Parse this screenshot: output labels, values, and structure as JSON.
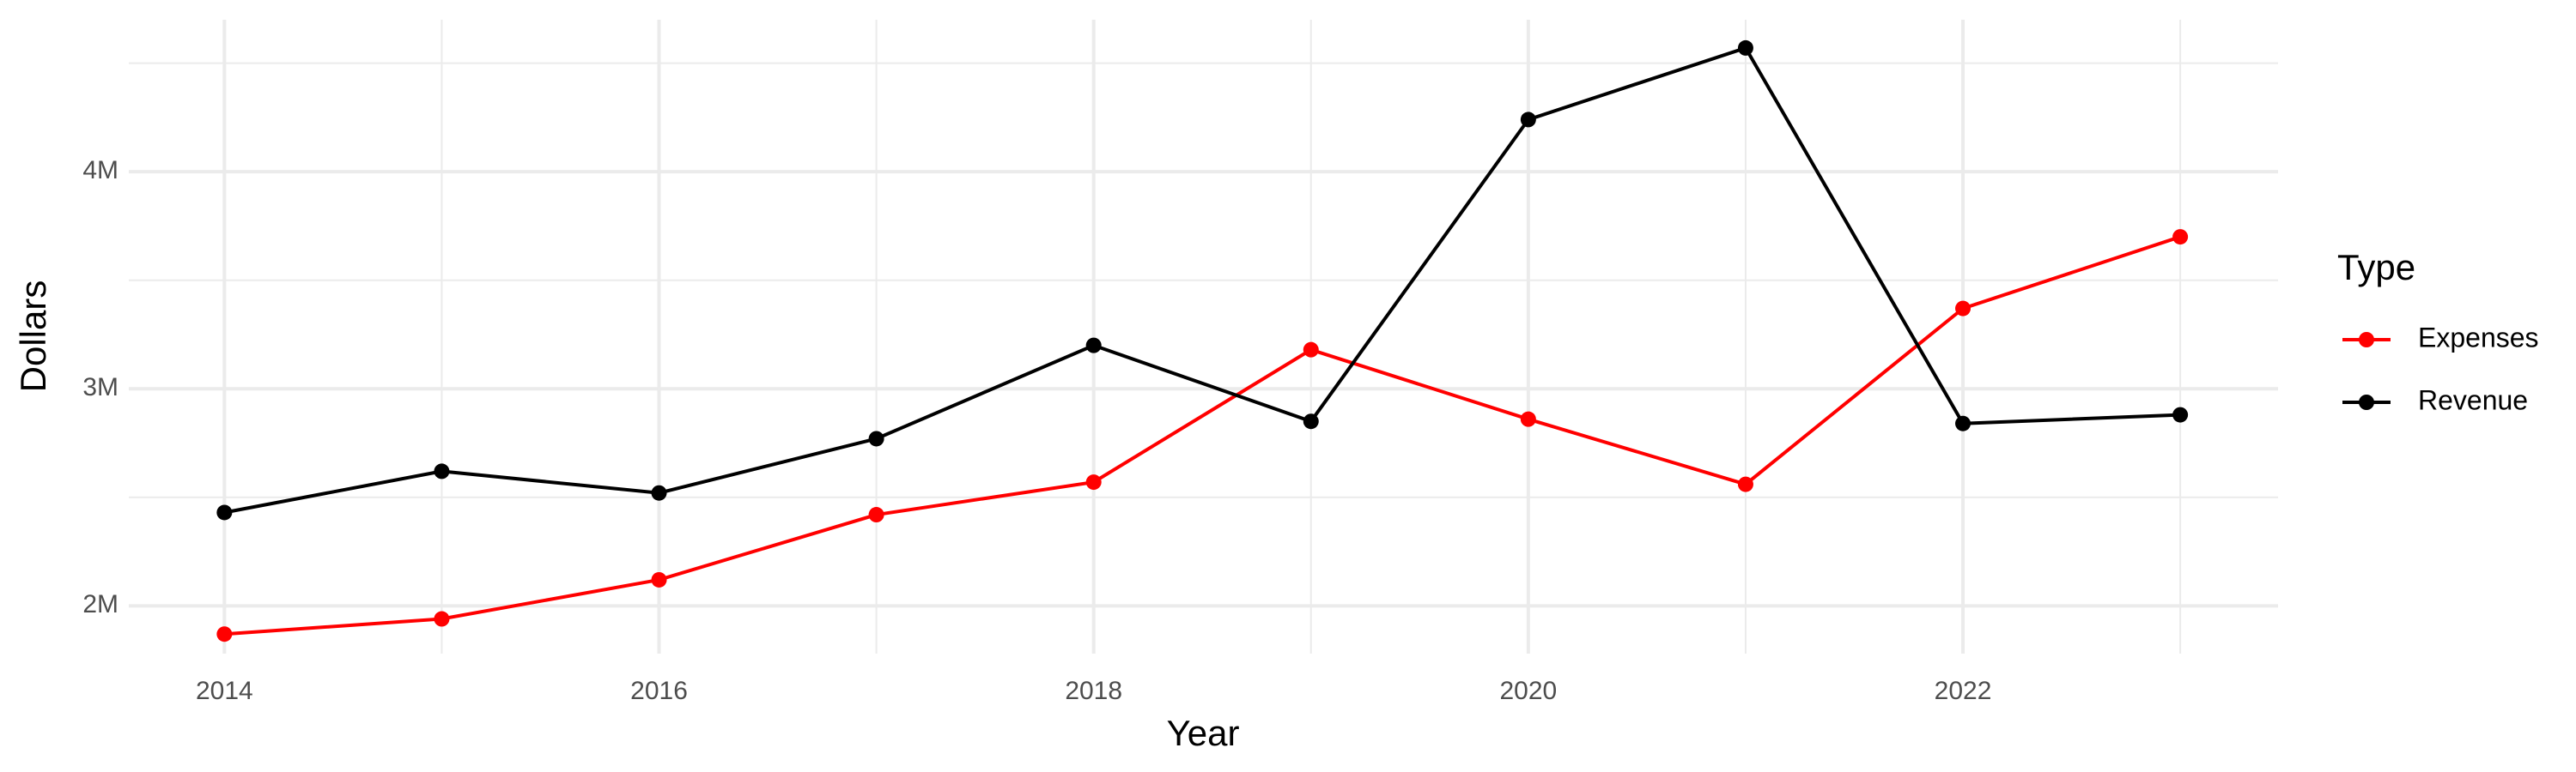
{
  "chart_data": {
    "type": "line",
    "x": [
      2014,
      2015,
      2016,
      2017,
      2018,
      2019,
      2020,
      2021,
      2022,
      2023
    ],
    "series": [
      {
        "name": "Expenses",
        "color": "#ff0000",
        "values": [
          1870000,
          1940000,
          2120000,
          2420000,
          2570000,
          3180000,
          2860000,
          2560000,
          3370000,
          3700000
        ]
      },
      {
        "name": "Revenue",
        "color": "#000000",
        "values": [
          2430000,
          2620000,
          2520000,
          2770000,
          3200000,
          2850000,
          4240000,
          4570000,
          2840000,
          2880000
        ]
      }
    ],
    "x_label": "Year",
    "y_label": "Dollars",
    "legend_title": "Type",
    "xlim": [
      2013.56,
      2023.45
    ],
    "xticks": [
      2014,
      2016,
      2018,
      2020,
      2022
    ],
    "ylim": [
      1780000,
      4700000
    ],
    "yticks": [
      {
        "value": 2000000,
        "label": "2M"
      },
      {
        "value": 3000000,
        "label": "3M"
      },
      {
        "value": 4000000,
        "label": "4M"
      }
    ],
    "grid": true,
    "legend_position": "right"
  }
}
